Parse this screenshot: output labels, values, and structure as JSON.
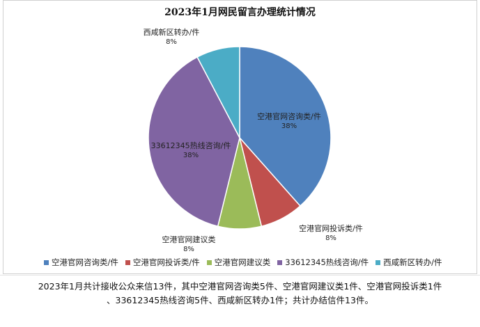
{
  "chart_data": {
    "type": "pie",
    "title": "2023年1月网民留言办理统计情况",
    "slices": [
      {
        "label": "空港官网咨询类/件",
        "value": 5,
        "percent_label": "38%",
        "color": "#4f81bd"
      },
      {
        "label": "空港官网投诉类/件",
        "value": 1,
        "percent_label": "8%",
        "color": "#c0504d"
      },
      {
        "label": "空港官网建议类",
        "value": 1,
        "percent_label": "8%",
        "color": "#9bbb59"
      },
      {
        "label": "33612345热线咨询/件",
        "value": 5,
        "percent_label": "38%",
        "color": "#8064a2"
      },
      {
        "label": "西咸新区转办/件",
        "value": 1,
        "percent_label": "8%",
        "color": "#4bacc6"
      }
    ],
    "legend_position": "bottom",
    "start_angle_deg": 0,
    "direction": "clockwise"
  },
  "summary": {
    "line1": "2023年1月共计接收公众来信13件，其中空港官网咨询类5件、空港官网建议类1件、空港官网投诉类1件",
    "line2": "、33612345热线咨询5件、西咸新区转办1件；共计办结信件13件。"
  }
}
